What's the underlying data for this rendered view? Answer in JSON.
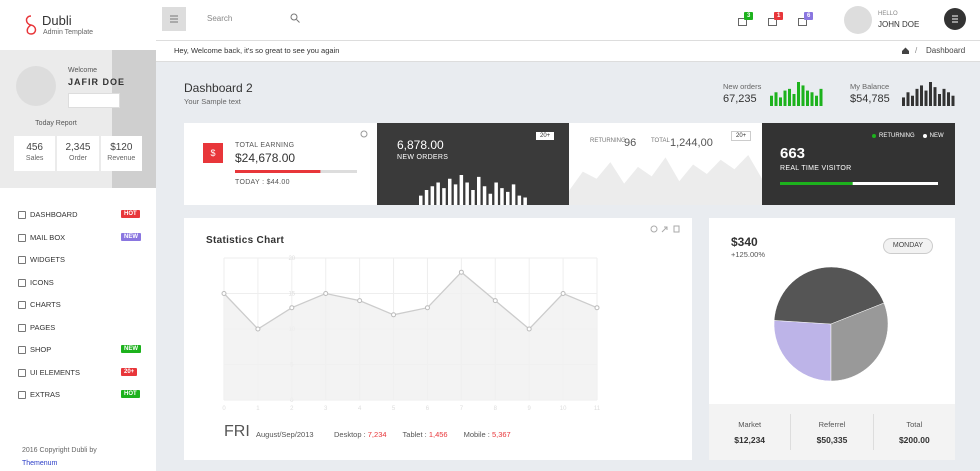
{
  "brand": {
    "name": "Dubli",
    "tagline": "Admin Template"
  },
  "profile": {
    "welcome": "Welcome",
    "name": "JAFIR DOE",
    "report_title": "Today Report",
    "stats": [
      {
        "value": "456",
        "label": "Sales"
      },
      {
        "value": "2,345",
        "label": "Order"
      },
      {
        "value": "$120",
        "label": "Revenue"
      }
    ]
  },
  "menu": [
    {
      "label": "DASHBOARD",
      "badge": "HOT",
      "badge_color": "#e8363a"
    },
    {
      "label": "MAIL BOX",
      "badge": "NEW",
      "badge_color": "#8a76e0"
    },
    {
      "label": "WIDGETS"
    },
    {
      "label": "ICONS"
    },
    {
      "label": "CHARTS"
    },
    {
      "label": "PAGES"
    },
    {
      "label": "SHOP",
      "badge": "NEW",
      "badge_color": "#1db21d"
    },
    {
      "label": "UI ELEMENTS",
      "badge": "20+",
      "badge_color": "#e8363a"
    },
    {
      "label": "EXTRAS",
      "badge": "HOT",
      "badge_color": "#1db21d"
    }
  ],
  "footer": {
    "text": "2016 Copyright Dubli by",
    "link": "Themenum"
  },
  "topbar": {
    "search": "Search",
    "badges": [
      {
        "count": "3",
        "color": "#1db21d"
      },
      {
        "count": "1",
        "color": "#e8363a"
      },
      {
        "count": "6",
        "color": "#8a76e0"
      }
    ],
    "greeting": "HELLO",
    "user": "JOHN DOE"
  },
  "breadcrumb": {
    "message": "Hey, Welcome back, it's so great to see you again",
    "separator": "/",
    "current": "Dashboard"
  },
  "header": {
    "title": "Dashboard 2",
    "subtitle": "Your Sample text",
    "new_orders": {
      "label": "New orders",
      "value": "67,235",
      "chart": {
        "type": "bar",
        "color": "#1db21d",
        "values": [
          6,
          8,
          5,
          9,
          10,
          7,
          14,
          12,
          9,
          8,
          6,
          10
        ]
      }
    },
    "balance": {
      "label": "My Balance",
      "value": "$54,785",
      "chart": {
        "type": "bar",
        "color": "#333333",
        "values": [
          5,
          8,
          6,
          10,
          12,
          9,
          14,
          11,
          7,
          10,
          8,
          6
        ]
      }
    }
  },
  "cards": {
    "earning": {
      "icon": "$",
      "label": "TOTAL EARNING",
      "value": "$24,678.00",
      "today": "TODAY : $44.00",
      "progress": 70,
      "color": "#e8363a"
    },
    "orders": {
      "value": "6,878.00",
      "label": "NEW ORDERS",
      "dropdown": "20+",
      "chart": {
        "type": "bar",
        "color": "#ffffff",
        "values": [
          5,
          8,
          10,
          12,
          9,
          14,
          11,
          16,
          12,
          8,
          15,
          10,
          6,
          12,
          9,
          7,
          11,
          5,
          4
        ]
      }
    },
    "returning": {
      "label": "RETURNING",
      "value": "96",
      "total_label": "TOTAL",
      "total": "1,244,00",
      "dropdown": "20+",
      "chart": {
        "type": "area",
        "color": "#ececec",
        "values": [
          6,
          14,
          11,
          18,
          9,
          16,
          12,
          20,
          10,
          17,
          13,
          19,
          15,
          21,
          11
        ]
      }
    },
    "visitors": {
      "value": "663",
      "label": "REAL TIME VISITOR",
      "legend": [
        {
          "name": "RETURNING",
          "color": "#1db21d"
        },
        {
          "name": "NEW",
          "color": "#ffffff"
        }
      ],
      "progress": 46
    }
  },
  "statistics": {
    "title": "Statistics Chart",
    "chart": {
      "type": "line",
      "color": "#cccccc",
      "fill": "#f0f0f0",
      "x": [
        0,
        1,
        2,
        3,
        4,
        5,
        6,
        7,
        8,
        9,
        10,
        11
      ],
      "values": [
        15,
        10,
        13,
        15,
        14,
        12,
        13,
        18,
        14,
        10,
        15,
        13
      ],
      "xlim": [
        0,
        11
      ],
      "xticks": [
        0,
        1,
        2,
        3,
        4,
        5,
        6,
        7,
        8,
        9,
        10,
        11
      ],
      "ylim": [
        0,
        20
      ],
      "yticks": [
        0,
        5,
        10,
        15,
        20
      ],
      "grid": true
    },
    "day": "FRI",
    "date": "August/Sep/2013",
    "devices": [
      {
        "label": "Desktop : ",
        "value": "7,234"
      },
      {
        "label": "Tablet : ",
        "value": "1,456"
      },
      {
        "label": "Mobile : ",
        "value": "5,367"
      }
    ]
  },
  "sales": {
    "value": "$340",
    "change": "+125.00%",
    "button": "MONDAY",
    "chart": {
      "type": "pie",
      "values": [
        26,
        43,
        31
      ],
      "colors": [
        "#bdb4e8",
        "#555555",
        "#999999"
      ]
    },
    "summary": [
      {
        "label": "Market",
        "value": "$12,234"
      },
      {
        "label": "Referrel",
        "value": "$50,335"
      },
      {
        "label": "Total",
        "value": "$200.00"
      }
    ]
  }
}
